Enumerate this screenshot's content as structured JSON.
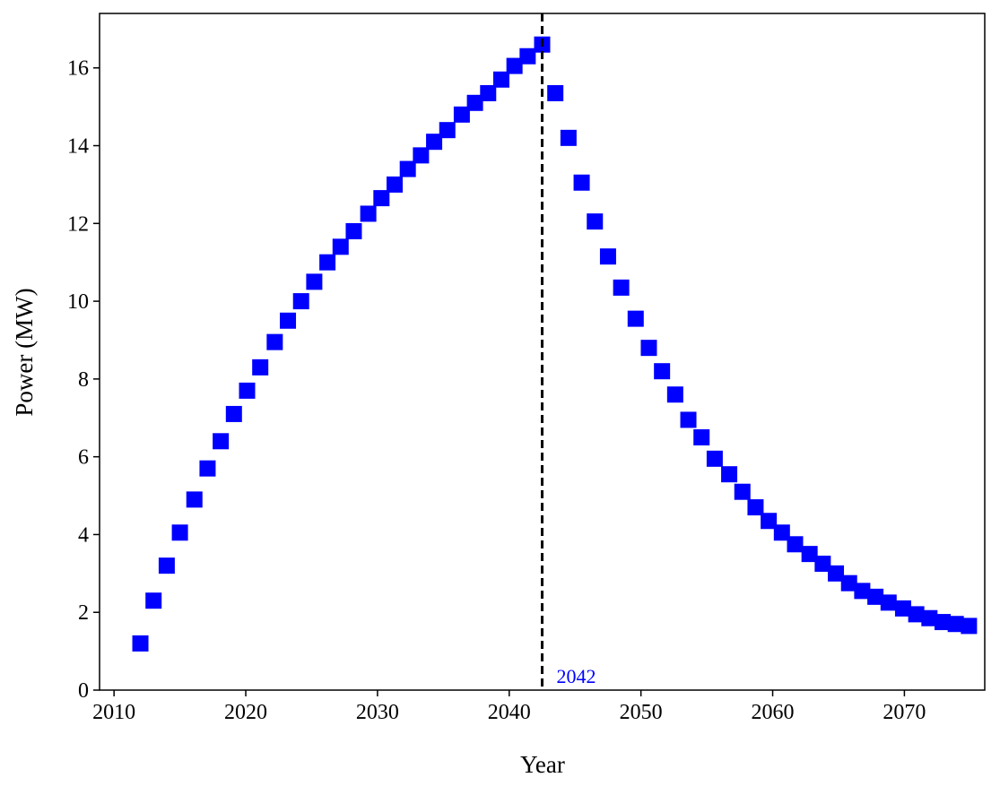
{
  "chart_data": {
    "type": "scatter",
    "xlabel": "Year",
    "ylabel": "Power (MW)",
    "x": [
      2012.0,
      2013.0,
      2014.0,
      2015.0,
      2016.1,
      2017.1,
      2018.1,
      2019.1,
      2020.1,
      2021.1,
      2022.2,
      2023.2,
      2024.2,
      2025.2,
      2026.2,
      2027.2,
      2028.2,
      2029.3,
      2030.3,
      2031.3,
      2032.3,
      2033.3,
      2034.3,
      2035.3,
      2036.4,
      2037.4,
      2038.4,
      2039.4,
      2040.4,
      2041.4,
      2042.5,
      2043.5,
      2044.5,
      2045.5,
      2046.5,
      2047.5,
      2048.5,
      2049.6,
      2050.6,
      2051.6,
      2052.6,
      2053.6,
      2054.6,
      2055.6,
      2056.7,
      2057.7,
      2058.7,
      2059.7,
      2060.7,
      2061.7,
      2062.8,
      2063.8,
      2064.8,
      2065.8,
      2066.8,
      2067.8,
      2068.8,
      2069.9,
      2070.9,
      2071.9,
      2072.9,
      2073.9,
      2074.9
    ],
    "values": [
      1.2,
      2.3,
      3.2,
      4.05,
      4.9,
      5.7,
      6.4,
      7.1,
      7.7,
      8.3,
      8.95,
      9.5,
      10.0,
      10.5,
      11.0,
      11.4,
      11.8,
      12.25,
      12.65,
      13.0,
      13.4,
      13.75,
      14.1,
      14.4,
      14.8,
      15.1,
      15.35,
      15.7,
      16.05,
      16.3,
      16.6,
      15.35,
      14.2,
      13.05,
      12.05,
      11.15,
      10.35,
      9.55,
      8.8,
      8.2,
      7.6,
      6.95,
      6.5,
      5.95,
      5.55,
      5.1,
      4.7,
      4.35,
      4.05,
      3.75,
      3.5,
      3.25,
      3.0,
      2.75,
      2.55,
      2.4,
      2.25,
      2.1,
      1.95,
      1.85,
      1.75,
      1.7,
      1.65
    ],
    "color": "#0000ff",
    "marker": "square",
    "vline_x": 2042.5,
    "annotation": "2042",
    "xlim": [
      2008.9,
      2076.1
    ],
    "xticks": [
      2010,
      2020,
      2030,
      2040,
      2050,
      2060,
      2070
    ],
    "ylim": [
      0,
      17.4
    ],
    "yticks": [
      0,
      2,
      4,
      6,
      8,
      10,
      12,
      14,
      16
    ]
  }
}
